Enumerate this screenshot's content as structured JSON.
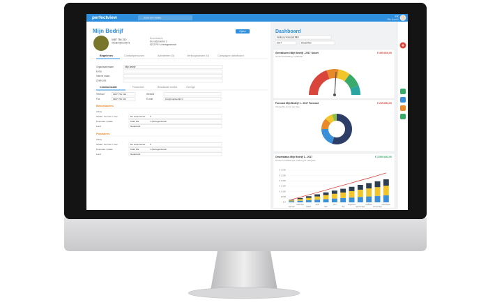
{
  "app": {
    "logo": "perfectview",
    "search": "Zoek een relatie",
    "user": "Eric",
    "user_sub": "Mijn Dossier"
  },
  "company": {
    "title": "Mijn Bedrijf",
    "options": "Opties",
    "phone": "0487 754 210",
    "email": "info@mijnbedrijf.nl",
    "visit_heading": "Bezoekadres",
    "street": "De ondernemer 2",
    "city": "5222 PN 's-Hertogenbosch"
  },
  "tabs": [
    "Begeleven",
    "Contactpersonen",
    "Activiteiten (0)",
    "Verkoopkansen (0)",
    "Campagne dashboard"
  ],
  "form": [
    {
      "label": "Organisatienaam",
      "value": "Mijn bedrijf"
    },
    {
      "label": "Extra"
    },
    {
      "label": "Interne naam"
    },
    {
      "label": "Zoekcode"
    }
  ],
  "subtabs": [
    "Communicatie",
    "Financieel",
    "Bestaande media",
    "Overige"
  ],
  "contact": [
    {
      "label": "Telefoon",
      "value": "0487 754 210"
    },
    {
      "label": "Fax",
      "value": "0487 754 212"
    },
    {
      "label": "Website"
    },
    {
      "label": "E-mail",
      "value": "info@mijnbedrijf.nl"
    }
  ],
  "addresses": [
    {
      "heading": "Bezoekadres",
      "rows": [
        {
          "label": "Adres"
        },
        {
          "label": "Straat / nummer / toev.",
          "value": "De ondernemer",
          "extra": "2"
        },
        {
          "label": "Postcode / plaats",
          "value": "5222 PN",
          "extra": "'s-Hertogenbosch"
        },
        {
          "label": "Land",
          "value": "Nederland"
        }
      ]
    },
    {
      "heading": "Postadres",
      "rows": [
        {
          "label": "Adres"
        },
        {
          "label": "Straat / nummer / toev.",
          "value": "De ondernemer",
          "extra": "2"
        },
        {
          "label": "Postcode / plaats",
          "value": "5222 PN",
          "extra": "'s-Hertogenbosch"
        },
        {
          "label": "Land",
          "value": "Nederland"
        }
      ]
    }
  ],
  "dashboard": {
    "title": "Dashboard",
    "selector": "Verkoop Forecast Mini",
    "year": "2017",
    "month": "December",
    "gauge": {
      "title": "Gerealiseerd Mijn Bedrijf - 2017 Omzet",
      "amount": "€ 495.660,00",
      "subtitle": "Omzet doelstelling / realisatie",
      "value": 52,
      "max": 100
    },
    "donut": {
      "title": "Forecast Mijn Bedrijf 1 - 2017 Forecast",
      "amount": "€ 269.894,00",
      "subtitle": "Verwachte omzet per fase",
      "values": [
        55,
        20,
        12,
        8,
        5
      ],
      "colors": [
        "#2c3e66",
        "#3a8fd8",
        "#e8892a",
        "#f2c62a",
        "#8fc04a"
      ]
    },
    "bars": {
      "title": "Omzetstatus Mijn Bedrijf 1 - 2017",
      "amount": "€ 3.509.842,00",
      "subtitle": "Omzet cumulatief per maand, per categorie",
      "categories": [
        "Januari",
        "Februari",
        "Maart",
        "April",
        "Mei",
        "Juni",
        "Juli",
        "Augustus",
        "September",
        "Oktober",
        "November",
        "December"
      ],
      "ylim": [
        0,
        3000
      ],
      "yticks": [
        {
          "value": 0,
          "label": "€ 0"
        },
        {
          "value": 500,
          "label": "€ 500"
        },
        {
          "value": 1000,
          "label": "€ 1.000"
        },
        {
          "value": 1500,
          "label": "€ 1.500"
        },
        {
          "value": 2000,
          "label": "€ 2.000"
        },
        {
          "value": 2500,
          "label": "€ 2.500"
        },
        {
          "value": 3000,
          "label": "€ 3.000"
        }
      ],
      "series": [
        {
          "color": "#3a8fd8",
          "values": [
            100,
            150,
            200,
            250,
            300,
            350,
            400,
            450,
            500,
            550,
            600,
            650
          ]
        },
        {
          "color": "#f2c62a",
          "values": [
            80,
            150,
            220,
            300,
            380,
            450,
            520,
            600,
            680,
            750,
            820,
            900
          ]
        },
        {
          "color": "#2c3e50",
          "values": [
            50,
            100,
            150,
            200,
            250,
            300,
            350,
            400,
            450,
            500,
            550,
            600
          ]
        }
      ],
      "trend": {
        "color": "#d9453a",
        "values": [
          250,
          480,
          700,
          920,
          1150,
          1380,
          1600,
          1820,
          2050,
          2270,
          2500,
          2750
        ]
      }
    }
  }
}
